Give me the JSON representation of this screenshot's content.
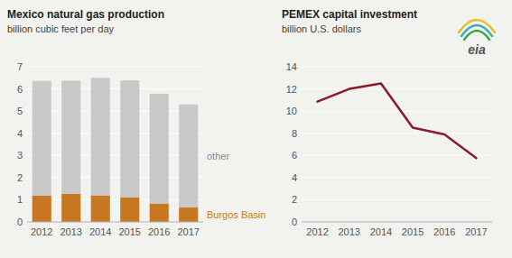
{
  "chart_data": [
    {
      "type": "bar",
      "stacked": true,
      "title": "Mexico natural gas production",
      "subtitle": "billion cubic feet per day",
      "categories": [
        "2012",
        "2013",
        "2014",
        "2015",
        "2016",
        "2017"
      ],
      "series": [
        {
          "name": "Burgos Basin",
          "color": "#c87820",
          "values": [
            1.18,
            1.27,
            1.2,
            1.1,
            0.83,
            0.65
          ]
        },
        {
          "name": "other",
          "color": "#c8c8c8",
          "values": [
            5.18,
            5.1,
            5.3,
            5.28,
            4.95,
            4.65
          ]
        }
      ],
      "ylim": [
        0,
        7
      ],
      "yticks": [
        0,
        1,
        2,
        3,
        4,
        5,
        6,
        7
      ],
      "grid": true
    },
    {
      "type": "line",
      "title": "PEMEX capital investment",
      "subtitle": "billion U.S. dollars",
      "categories": [
        "2012",
        "2013",
        "2014",
        "2015",
        "2016",
        "2017"
      ],
      "values": [
        10.85,
        12.0,
        12.5,
        8.5,
        7.9,
        5.75
      ],
      "color": "#8b1a2a",
      "ylim": [
        0,
        14
      ],
      "yticks": [
        0,
        2,
        4,
        6,
        8,
        10,
        12,
        14
      ],
      "grid": true,
      "annotations": [
        "eia"
      ]
    }
  ]
}
